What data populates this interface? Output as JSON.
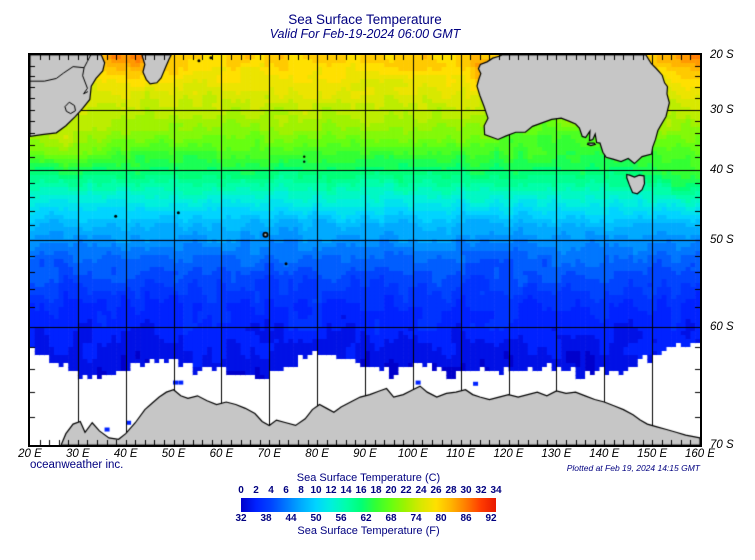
{
  "header": {
    "title": "Sea Surface Temperature",
    "subtitle": "Valid For Feb-19-2024 06:00 GMT"
  },
  "footer": {
    "credit": "oceanweather inc.",
    "plotted": "Plotted at Feb 19, 2024 14:15 GMT"
  },
  "colors": {
    "text_navy": "#000080",
    "land_fill": "#c6c6c6",
    "land_stroke": "#000000",
    "grid": "#000000",
    "ice": "#ffffff"
  },
  "map": {
    "lon_min": 20,
    "lon_max": 160,
    "lat_min_S": 20,
    "lat_max_S": 70,
    "projection": "mercator",
    "grid_interval_deg": 10,
    "tick_interval_deg": 2,
    "lon_labels": [
      {
        "lon": 20,
        "label": "20 E"
      },
      {
        "lon": 30,
        "label": "30 E"
      },
      {
        "lon": 40,
        "label": "40 E"
      },
      {
        "lon": 50,
        "label": "50 E"
      },
      {
        "lon": 60,
        "label": "60 E"
      },
      {
        "lon": 70,
        "label": "70 E"
      },
      {
        "lon": 80,
        "label": "80 E"
      },
      {
        "lon": 90,
        "label": "90 E"
      },
      {
        "lon": 100,
        "label": "100 E"
      },
      {
        "lon": 110,
        "label": "110 E"
      },
      {
        "lon": 120,
        "label": "120 E"
      },
      {
        "lon": 130,
        "label": "130 E"
      },
      {
        "lon": 140,
        "label": "140 E"
      },
      {
        "lon": 150,
        "label": "150 E"
      },
      {
        "lon": 160,
        "label": "160 E"
      }
    ],
    "lat_labels": [
      {
        "lat": 20,
        "label": "20 S"
      },
      {
        "lat": 30,
        "label": "30 S"
      },
      {
        "lat": 40,
        "label": "40 S"
      },
      {
        "lat": 50,
        "label": "50 S"
      },
      {
        "lat": 60,
        "label": "60 S"
      },
      {
        "lat": 70,
        "label": "70 S"
      }
    ],
    "grid_lons": [
      30,
      40,
      50,
      60,
      70,
      80,
      90,
      100,
      110,
      120,
      130,
      140,
      150
    ],
    "grid_lats": [
      30,
      40,
      50,
      60
    ]
  },
  "chart_data": {
    "type": "heatmap",
    "title": "Sea Surface Temperature",
    "valid_time": "Feb-19-2024 06:00 GMT",
    "region": "Southern Indian Ocean / Southern Ocean (20E-160E, 20S-70S)",
    "units_C_range": [
      0,
      34
    ],
    "units_F_range": [
      32,
      92
    ],
    "sst_by_latitude_C": {
      "lat_S": [
        20,
        25,
        30,
        33,
        36,
        40,
        43,
        46,
        48,
        50,
        52,
        55,
        58,
        61,
        64,
        70
      ],
      "sst": [
        27,
        25,
        23,
        21.5,
        19.5,
        16.5,
        13.5,
        10.5,
        8.5,
        7,
        5.5,
        4,
        2.5,
        1.6,
        0.8,
        0.3
      ]
    },
    "warm_cool_anomalies": [
      {
        "name": "mozambique-channel-warm",
        "lon": 41,
        "lat_S": 20,
        "amp_C": 3,
        "sigma_lon": 7,
        "sigma_lat": 4
      },
      {
        "name": "coral-sea-warm",
        "lon": 160,
        "lat_S": 21,
        "amp_C": 2.5,
        "sigma_lon": 9,
        "sigma_lat": 4
      },
      {
        "name": "agulhas-warm",
        "lon": 27,
        "lat_S": 35,
        "amp_C": 2.5,
        "sigma_lon": 10,
        "sigma_lat": 4
      },
      {
        "name": "wa-coast-warm",
        "lon": 114,
        "lat_S": 23,
        "amp_C": 3,
        "sigma_lon": 2.5,
        "sigma_lat": 3
      },
      {
        "name": "bight-cool",
        "lon": 127,
        "lat_S": 34,
        "amp_C": -1.8,
        "sigma_lon": 10,
        "sigma_lat": 3
      },
      {
        "name": "tasman-warm",
        "lon": 157,
        "lat_S": 41,
        "amp_C": 2,
        "sigma_lon": 7,
        "sigma_lat": 4
      }
    ],
    "ice_edge": {
      "lon": [
        20,
        24,
        28,
        32,
        36,
        40,
        44,
        48,
        52,
        56,
        60,
        64,
        68,
        72,
        76,
        80,
        84,
        88,
        92,
        96,
        100,
        104,
        108,
        112,
        116,
        120,
        124,
        128,
        132,
        136,
        140,
        144,
        148,
        152,
        156,
        160
      ],
      "lat_S": [
        62.3,
        62.9,
        63.9,
        64.9,
        64.7,
        64.1,
        63.3,
        63.1,
        63.7,
        64.3,
        63.9,
        64.5,
        64.9,
        64.3,
        63.3,
        62.5,
        62.7,
        63.5,
        64.1,
        64.5,
        63.5,
        63.9,
        64.5,
        63.9,
        64.3,
        63.9,
        64.3,
        63.7,
        64.1,
        64.5,
        64.1,
        64.3,
        63.3,
        62.5,
        61.9,
        61.6
      ]
    },
    "polynyas_lonlat": [
      [
        50.3,
        65.2
      ],
      [
        51.4,
        65.2
      ],
      [
        36,
        68.9
      ],
      [
        101,
        65.2
      ],
      [
        113,
        65.3
      ],
      [
        40.5,
        68.4
      ]
    ],
    "land": {
      "africa": [
        [
          20,
          20
        ],
        [
          34.9,
          20
        ],
        [
          35.6,
          21.5
        ],
        [
          35.2,
          23
        ],
        [
          33.8,
          24.4
        ],
        [
          32.8,
          25.8
        ],
        [
          32.5,
          28.2
        ],
        [
          31,
          29.8
        ],
        [
          29.5,
          31.2
        ],
        [
          27.5,
          32.8
        ],
        [
          25.5,
          34
        ],
        [
          22.5,
          34.3
        ],
        [
          20,
          34.6
        ]
      ],
      "madagascar": [
        [
          43.4,
          20
        ],
        [
          44.0,
          21.8
        ],
        [
          43.6,
          23.2
        ],
        [
          44.3,
          24.6
        ],
        [
          45.1,
          25.4
        ],
        [
          46.5,
          25.2
        ],
        [
          47.4,
          24.3
        ],
        [
          48.2,
          22.6
        ],
        [
          49.0,
          20.9
        ],
        [
          49.5,
          20
        ]
      ],
      "australia": [
        [
          148.7,
          20
        ],
        [
          149.8,
          21.6
        ],
        [
          150.9,
          22.6
        ],
        [
          152.1,
          23.8
        ],
        [
          152.6,
          25.2
        ],
        [
          153.2,
          25.9
        ],
        [
          153.1,
          27.2
        ],
        [
          153.6,
          28.8
        ],
        [
          152.9,
          31.2
        ],
        [
          151.9,
          32.6
        ],
        [
          151.2,
          33.6
        ],
        [
          150.7,
          35.1
        ],
        [
          150.1,
          36.4
        ],
        [
          149.9,
          37.5
        ],
        [
          147.9,
          37.9
        ],
        [
          146.3,
          39.0
        ],
        [
          145.0,
          38.2
        ],
        [
          143.5,
          38.7
        ],
        [
          141.8,
          38.3
        ],
        [
          140.4,
          38.0
        ],
        [
          139.7,
          37.2
        ],
        [
          139.1,
          35.7
        ],
        [
          138.4,
          35.6
        ],
        [
          138.1,
          34.2
        ],
        [
          137.6,
          35.1
        ],
        [
          136.9,
          35.3
        ],
        [
          137.0,
          33.7
        ],
        [
          136.1,
          34.8
        ],
        [
          135.4,
          34.6
        ],
        [
          134.8,
          33.2
        ],
        [
          134.0,
          32.5
        ],
        [
          132.6,
          32.0
        ],
        [
          131.0,
          31.5
        ],
        [
          129.0,
          31.7
        ],
        [
          127.0,
          32.3
        ],
        [
          125.0,
          32.9
        ],
        [
          123.5,
          33.9
        ],
        [
          121.5,
          33.9
        ],
        [
          119.5,
          34.5
        ],
        [
          117.8,
          35.1
        ],
        [
          115.0,
          34.3
        ],
        [
          114.9,
          32.8
        ],
        [
          115.7,
          31.5
        ],
        [
          114.9,
          29.5
        ],
        [
          114.0,
          27.5
        ],
        [
          113.4,
          25.8
        ],
        [
          113.8,
          24.5
        ],
        [
          114.2,
          23.5
        ],
        [
          113.7,
          22.6
        ],
        [
          114.1,
          21.8
        ],
        [
          115.5,
          21.3
        ],
        [
          116.7,
          20.6
        ],
        [
          118.2,
          20.2
        ],
        [
          118.6,
          20
        ]
      ],
      "kangaroo_island": [
        [
          136.6,
          35.7
        ],
        [
          137.9,
          35.7
        ],
        [
          138.1,
          35.9
        ],
        [
          137.2,
          36.1
        ],
        [
          136.5,
          35.9
        ]
      ],
      "tasmania": [
        [
          144.7,
          40.7
        ],
        [
          145.3,
          40.8
        ],
        [
          146.3,
          41.1
        ],
        [
          147.3,
          40.8
        ],
        [
          148.3,
          40.9
        ],
        [
          148.4,
          42.1
        ],
        [
          147.9,
          43.0
        ],
        [
          146.9,
          43.6
        ],
        [
          145.9,
          43.4
        ],
        [
          145.2,
          42.2
        ],
        [
          144.7,
          41.2
        ]
      ],
      "antarctica": [
        [
          26.5,
          70
        ],
        [
          27.5,
          69.2
        ],
        [
          29,
          68.5
        ],
        [
          30.5,
          68.3
        ],
        [
          31.5,
          69.1
        ],
        [
          33,
          68.4
        ],
        [
          34.5,
          69.0
        ],
        [
          36.5,
          69.5
        ],
        [
          38.5,
          69.6
        ],
        [
          40,
          69.2
        ],
        [
          42,
          68.4
        ],
        [
          44,
          67.4
        ],
        [
          45.5,
          66.9
        ],
        [
          47,
          66.4
        ],
        [
          48.5,
          66.0
        ],
        [
          50,
          65.8
        ],
        [
          51.5,
          66.3
        ],
        [
          53,
          66.5
        ],
        [
          55,
          66.3
        ],
        [
          57,
          66.7
        ],
        [
          59,
          67.0
        ],
        [
          61,
          66.8
        ],
        [
          63,
          67.0
        ],
        [
          65,
          67.3
        ],
        [
          67,
          67.7
        ],
        [
          68.5,
          68.3
        ],
        [
          70,
          68.6
        ],
        [
          71.5,
          68.2
        ],
        [
          73.5,
          68.4
        ],
        [
          75.5,
          68.6
        ],
        [
          77.5,
          68.1
        ],
        [
          79,
          67.4
        ],
        [
          80.5,
          67.0
        ],
        [
          82,
          67.3
        ],
        [
          83.5,
          67.6
        ],
        [
          85,
          67.2
        ],
        [
          87,
          66.8
        ],
        [
          89,
          66.4
        ],
        [
          91,
          66.2
        ],
        [
          93,
          65.9
        ],
        [
          94.5,
          65.7
        ],
        [
          96,
          66.4
        ],
        [
          98,
          66.2
        ],
        [
          100,
          65.8
        ],
        [
          101.5,
          65.5
        ],
        [
          103,
          66.0
        ],
        [
          105,
          66.4
        ],
        [
          107,
          66.1
        ],
        [
          109,
          66.0
        ],
        [
          111,
          65.8
        ],
        [
          112.5,
          66.2
        ],
        [
          114,
          66.4
        ],
        [
          116,
          66.6
        ],
        [
          118,
          66.4
        ],
        [
          120,
          66.2
        ],
        [
          122,
          66.4
        ],
        [
          124,
          66.2
        ],
        [
          126,
          66.0
        ],
        [
          128,
          66.3
        ],
        [
          130,
          65.9
        ],
        [
          132,
          66.1
        ],
        [
          134,
          66.0
        ],
        [
          136,
          66.3
        ],
        [
          138,
          66.6
        ],
        [
          140,
          66.8
        ],
        [
          142,
          67.1
        ],
        [
          144,
          67.4
        ],
        [
          146,
          67.8
        ],
        [
          147.5,
          68.2
        ],
        [
          149,
          68.5
        ],
        [
          151,
          68.7
        ],
        [
          153,
          68.9
        ],
        [
          155,
          69.1
        ],
        [
          157,
          69.3
        ],
        [
          160,
          69.5
        ],
        [
          160,
          70
        ]
      ]
    },
    "borders": [
      [
        [
          20,
          24.9
        ],
        [
          23,
          24.9
        ],
        [
          25.5,
          24.4
        ],
        [
          27,
          23.4
        ],
        [
          29,
          22.2
        ],
        [
          31.3,
          22.4
        ],
        [
          32,
          21.2
        ],
        [
          32.7,
          20
        ]
      ],
      [
        [
          31.3,
          22.4
        ],
        [
          31,
          23.9
        ],
        [
          32,
          26.2
        ],
        [
          31.2,
          27.2
        ],
        [
          32.1,
          26.8
        ]
      ],
      [
        [
          28.2,
          28.7
        ],
        [
          29.3,
          29.3
        ],
        [
          29.5,
          30.2
        ],
        [
          28.5,
          30.7
        ],
        [
          27.6,
          30.3
        ],
        [
          27.3,
          29.5
        ],
        [
          28.2,
          28.7
        ]
      ]
    ],
    "islands": [
      {
        "name": "prince-edward",
        "lon": 37.9,
        "lat_S": 46.8,
        "r": 1.5
      },
      {
        "name": "crozet",
        "lon": 51.0,
        "lat_S": 46.3,
        "r": 1.5
      },
      {
        "name": "kerguelen",
        "lon": 69.2,
        "lat_S": 49.3,
        "r": 3
      },
      {
        "name": "heard",
        "lon": 73.5,
        "lat_S": 53.0,
        "r": 1.5
      },
      {
        "name": "amsterdam",
        "lon": 77.3,
        "lat_S": 37.9,
        "r": 1.2
      },
      {
        "name": "st-paul",
        "lon": 77.3,
        "lat_S": 38.7,
        "r": 1.2
      },
      {
        "name": "reunion",
        "lon": 55.3,
        "lat_S": 21.1,
        "r": 1.5
      },
      {
        "name": "mauritius",
        "lon": 57.8,
        "lat_S": 20.5,
        "r": 1.5
      }
    ]
  },
  "legend": {
    "title_c": "Sea Surface Temperature (C)",
    "values_c": [
      0,
      2,
      4,
      6,
      8,
      10,
      12,
      14,
      16,
      18,
      20,
      22,
      24,
      26,
      28,
      30,
      32,
      34
    ],
    "title_f": "Sea Surface Temperature (F)",
    "values_f": [
      32,
      38,
      44,
      50,
      56,
      62,
      68,
      74,
      80,
      86,
      92
    ],
    "colorbar_stops": [
      [
        0,
        "#0000cc"
      ],
      [
        2,
        "#0022ff"
      ],
      [
        4,
        "#0044ff"
      ],
      [
        6,
        "#0077ff"
      ],
      [
        8,
        "#00aaff"
      ],
      [
        10,
        "#00d4ff"
      ],
      [
        12,
        "#00f0dd"
      ],
      [
        14,
        "#00ffaa"
      ],
      [
        16,
        "#00ff77"
      ],
      [
        18,
        "#33ff33"
      ],
      [
        20,
        "#66ff11"
      ],
      [
        22,
        "#a0f200"
      ],
      [
        24,
        "#d8e800"
      ],
      [
        26,
        "#ffe000"
      ],
      [
        28,
        "#ffb400"
      ],
      [
        30,
        "#ff7d00"
      ],
      [
        32,
        "#ff3c00"
      ],
      [
        34,
        "#e81800"
      ]
    ]
  }
}
